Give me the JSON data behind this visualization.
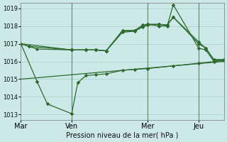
{
  "xlabel": "Pression niveau de la mer( hPa )",
  "bg_color": "#cce8e8",
  "grid_color": "#a8cfc8",
  "line_color": "#2d6b2d",
  "ylim": [
    1012.7,
    1019.3
  ],
  "xlim": [
    0,
    1
  ],
  "day_positions": [
    0.0,
    0.25,
    0.625,
    0.875
  ],
  "day_labels": [
    "Mar",
    "Ven",
    "Mer",
    "Jeu"
  ],
  "vline_positions": [
    0.25,
    0.625,
    0.875
  ],
  "series1_x": [
    0.0,
    0.04,
    0.08,
    0.25,
    0.32,
    0.37,
    0.42,
    0.5,
    0.56,
    0.6,
    0.625,
    0.68,
    0.72,
    0.75,
    0.875,
    0.91,
    0.95,
    1.0
  ],
  "series1_y": [
    1017.0,
    1016.85,
    1016.7,
    1016.65,
    1016.65,
    1016.65,
    1016.6,
    1017.75,
    1017.75,
    1018.05,
    1018.1,
    1018.0,
    1018.0,
    1019.2,
    1016.75,
    1016.65,
    1016.0,
    1016.1
  ],
  "series2_x": [
    0.0,
    0.04,
    0.25,
    0.32,
    0.37,
    0.42,
    0.5,
    0.56,
    0.6,
    0.625,
    0.68,
    0.72,
    0.75,
    0.875,
    0.91,
    0.95,
    1.0
  ],
  "series2_y": [
    1017.0,
    1016.85,
    1016.65,
    1016.65,
    1016.65,
    1016.6,
    1017.7,
    1017.75,
    1018.0,
    1018.1,
    1018.1,
    1018.05,
    1018.5,
    1017.0,
    1016.75,
    1016.1,
    1016.1
  ],
  "series3_x": [
    0.0,
    0.25,
    0.32,
    0.37,
    0.42,
    0.5,
    0.56,
    0.6,
    0.625,
    0.68,
    0.72,
    0.75,
    0.875,
    0.91,
    0.95,
    1.0
  ],
  "series3_y": [
    1017.0,
    1016.65,
    1016.65,
    1016.65,
    1016.6,
    1017.65,
    1017.7,
    1017.95,
    1018.05,
    1018.1,
    1018.05,
    1018.5,
    1017.1,
    1016.75,
    1016.1,
    1016.1
  ],
  "series4_x": [
    0.0,
    0.08,
    0.13,
    0.25,
    0.28,
    0.32,
    0.37,
    0.42,
    0.5,
    0.56,
    0.625,
    0.75,
    0.875,
    1.0
  ],
  "series4_y": [
    1017.0,
    1014.85,
    1013.6,
    1013.05,
    1014.8,
    1015.2,
    1015.25,
    1015.3,
    1015.5,
    1015.55,
    1015.6,
    1015.75,
    1015.9,
    1016.05
  ],
  "series5_x": [
    0.0,
    1.0
  ],
  "series5_y": [
    1015.0,
    1016.0
  ]
}
